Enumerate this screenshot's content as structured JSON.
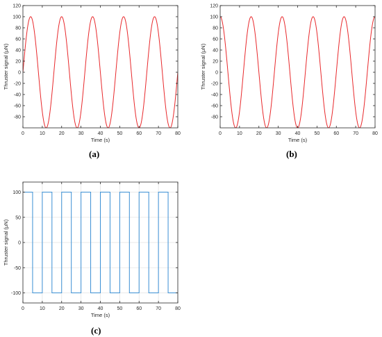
{
  "chart_data": [
    {
      "type": "line",
      "panel_label": "a",
      "title": "",
      "xlabel": "Time (s)",
      "ylabel": "Thruster signal (μN)",
      "xlim": [
        0,
        80
      ],
      "ylim": [
        -100,
        120
      ],
      "xticks": [
        0,
        10,
        20,
        30,
        40,
        50,
        60,
        70,
        80
      ],
      "yticks": [
        -80,
        -60,
        -40,
        -20,
        0,
        20,
        40,
        60,
        80,
        100,
        120
      ],
      "grid": false,
      "series": [
        {
          "signal": "sine",
          "amplitude": 100,
          "period_s": 16,
          "phase": "sin",
          "color": "#e8282b",
          "x": [
            0,
            4,
            8,
            12,
            16,
            20,
            24,
            28,
            32,
            36,
            40,
            44,
            48,
            52,
            56,
            60,
            64,
            68,
            72,
            76,
            80
          ],
          "y": [
            0,
            100,
            0,
            -100,
            0,
            100,
            0,
            -100,
            0,
            100,
            0,
            -100,
            0,
            100,
            0,
            -100,
            0,
            100,
            0,
            -100,
            0
          ]
        }
      ]
    },
    {
      "type": "line",
      "panel_label": "b",
      "title": "",
      "xlabel": "Time (s)",
      "ylabel": "Thruster signal (μN)",
      "xlim": [
        0,
        80
      ],
      "ylim": [
        -100,
        120
      ],
      "xticks": [
        0,
        10,
        20,
        30,
        40,
        50,
        60,
        70,
        80
      ],
      "yticks": [
        -80,
        -60,
        -40,
        -20,
        0,
        20,
        40,
        60,
        80,
        100,
        120
      ],
      "grid": false,
      "series": [
        {
          "signal": "sine",
          "amplitude": 100,
          "period_s": 16,
          "phase": "cos",
          "color": "#e8282b",
          "x": [
            0,
            4,
            8,
            12,
            16,
            20,
            24,
            28,
            32,
            36,
            40,
            44,
            48,
            52,
            56,
            60,
            64,
            68,
            72,
            76,
            80
          ],
          "y": [
            100,
            0,
            -100,
            0,
            100,
            0,
            -100,
            0,
            100,
            0,
            -100,
            0,
            100,
            0,
            -100,
            0,
            100,
            0,
            -100,
            0,
            100
          ]
        }
      ]
    },
    {
      "type": "line",
      "panel_label": "c",
      "title": "",
      "xlabel": "Time (s)",
      "ylabel": "Thruster signal (μN)",
      "xlim": [
        0,
        80
      ],
      "ylim": [
        -120,
        120
      ],
      "xticks": [
        0,
        10,
        20,
        30,
        40,
        50,
        60,
        70,
        80
      ],
      "yticks": [
        -100,
        -50,
        0,
        50,
        100
      ],
      "grid": true,
      "series": [
        {
          "signal": "square",
          "amplitude": 100,
          "period_s": 10,
          "color": "#3a8fd4",
          "x": [
            0,
            5,
            5,
            10,
            10,
            15,
            15,
            20,
            20,
            25,
            25,
            30,
            30,
            35,
            35,
            40,
            40,
            45,
            45,
            50,
            50,
            55,
            55,
            60,
            60,
            65,
            65,
            70,
            70,
            75,
            75,
            80
          ],
          "y": [
            100,
            100,
            -100,
            -100,
            100,
            100,
            -100,
            -100,
            100,
            100,
            -100,
            -100,
            100,
            100,
            -100,
            -100,
            100,
            100,
            -100,
            -100,
            100,
            100,
            -100,
            -100,
            100,
            100,
            -100,
            -100,
            100,
            100,
            -100,
            -100
          ]
        }
      ]
    }
  ],
  "captions": {
    "a": "(a)",
    "b": "(b)",
    "c": "(c)"
  }
}
